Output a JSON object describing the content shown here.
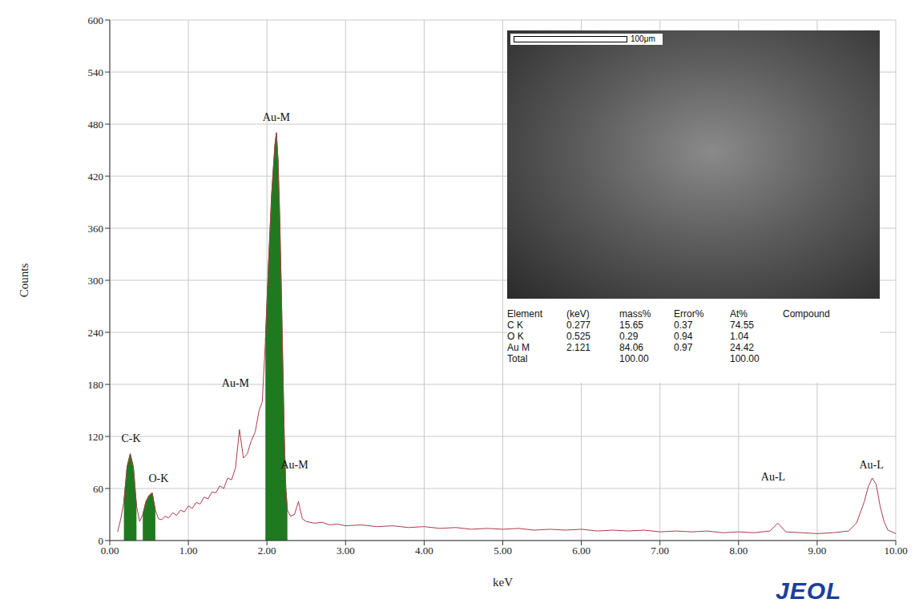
{
  "chart_data": {
    "type": "line",
    "x_label": "keV",
    "y_label": "Counts",
    "xlim": [
      0,
      10
    ],
    "xticks": [
      {
        "value": 0,
        "label": "0.00"
      },
      {
        "value": 1,
        "label": "1.00"
      },
      {
        "value": 2,
        "label": "2.00"
      },
      {
        "value": 3,
        "label": "3.00"
      },
      {
        "value": 4,
        "label": "4.00"
      },
      {
        "value": 5,
        "label": "5.00"
      },
      {
        "value": 6,
        "label": "6.00"
      },
      {
        "value": 7,
        "label": "7.00"
      },
      {
        "value": 8,
        "label": "8.00"
      },
      {
        "value": 9,
        "label": "9.00"
      },
      {
        "value": 10,
        "label": "10.00"
      }
    ],
    "ylim": [
      0,
      600
    ],
    "yticks": [
      0,
      60,
      120,
      180,
      240,
      300,
      360,
      420,
      480,
      540,
      600
    ],
    "grid": true,
    "x": [
      0.1,
      0.14,
      0.18,
      0.22,
      0.26,
      0.3,
      0.34,
      0.38,
      0.42,
      0.46,
      0.5,
      0.54,
      0.58,
      0.62,
      0.66,
      0.7,
      0.75,
      0.8,
      0.85,
      0.9,
      0.95,
      1.0,
      1.05,
      1.1,
      1.15,
      1.2,
      1.25,
      1.3,
      1.35,
      1.4,
      1.45,
      1.5,
      1.55,
      1.6,
      1.65,
      1.7,
      1.75,
      1.8,
      1.85,
      1.9,
      1.94,
      1.98,
      2.02,
      2.06,
      2.1,
      2.12,
      2.14,
      2.16,
      2.18,
      2.2,
      2.22,
      2.24,
      2.26,
      2.3,
      2.35,
      2.4,
      2.45,
      2.5,
      2.6,
      2.7,
      2.8,
      2.9,
      3.0,
      3.2,
      3.4,
      3.6,
      3.8,
      4.0,
      4.2,
      4.4,
      4.6,
      4.8,
      5.0,
      5.2,
      5.4,
      5.6,
      5.8,
      6.0,
      6.2,
      6.4,
      6.6,
      6.8,
      7.0,
      7.2,
      7.4,
      7.6,
      7.8,
      8.0,
      8.2,
      8.4,
      8.5,
      8.6,
      8.8,
      9.0,
      9.2,
      9.4,
      9.5,
      9.6,
      9.65,
      9.7,
      9.75,
      9.8,
      9.85,
      9.9,
      10.0
    ],
    "series": [
      {
        "type": "line",
        "color": "#b03a48",
        "values": [
          10,
          25,
          45,
          85,
          100,
          85,
          40,
          22,
          30,
          45,
          52,
          55,
          35,
          25,
          24,
          28,
          26,
          32,
          29,
          35,
          33,
          40,
          37,
          44,
          42,
          50,
          48,
          56,
          55,
          63,
          60,
          72,
          70,
          84,
          128,
          95,
          100,
          115,
          125,
          150,
          160,
          230,
          320,
          400,
          455,
          470,
          440,
          380,
          300,
          210,
          120,
          60,
          35,
          28,
          30,
          45,
          25,
          22,
          20,
          21,
          18,
          19,
          17,
          18,
          16,
          17,
          15,
          16,
          14,
          15,
          13,
          14,
          13,
          14,
          12,
          13,
          12,
          13,
          11,
          12,
          11,
          12,
          10,
          11,
          10,
          11,
          9,
          10,
          9,
          11,
          20,
          10,
          9,
          8,
          9,
          11,
          20,
          45,
          62,
          72,
          65,
          40,
          22,
          12,
          8
        ]
      },
      {
        "type": "area",
        "color": "#1f7a1f",
        "values": [
          null,
          null,
          45,
          85,
          100,
          85,
          40,
          null,
          30,
          45,
          52,
          55,
          35,
          null,
          null,
          null,
          null,
          null,
          null,
          null,
          null,
          null,
          null,
          null,
          null,
          null,
          null,
          null,
          null,
          null,
          null,
          null,
          null,
          null,
          null,
          null,
          null,
          null,
          null,
          null,
          null,
          230,
          320,
          400,
          455,
          470,
          440,
          380,
          300,
          210,
          120,
          60,
          35,
          null,
          null,
          null,
          null,
          null,
          null,
          null,
          null,
          null,
          null,
          null,
          null,
          null,
          null,
          null,
          null,
          null,
          null,
          null,
          null,
          null,
          null,
          null,
          null,
          null,
          null,
          null,
          null,
          null,
          null,
          null,
          null,
          null,
          null,
          null,
          null,
          null,
          null,
          null,
          null,
          null,
          null,
          null,
          null,
          null,
          null,
          null,
          null,
          null,
          null,
          null,
          null
        ]
      }
    ],
    "annotations": [
      {
        "text": "C-K",
        "x": 0.27,
        "y": 118
      },
      {
        "text": "O-K",
        "x": 0.62,
        "y": 72
      },
      {
        "text": "Au-M",
        "x": 2.12,
        "y": 488
      },
      {
        "text": "Au-M",
        "x": 1.6,
        "y": 182
      },
      {
        "text": "Au-M",
        "x": 2.35,
        "y": 88
      },
      {
        "text": "Au-L",
        "x": 8.44,
        "y": 74
      },
      {
        "text": "Au-L",
        "x": 9.69,
        "y": 88
      }
    ],
    "inset": {
      "scale_bar": "100μm",
      "table": {
        "columns": [
          "Element",
          "(keV)",
          "mass%",
          "Error%",
          "At%",
          "Compound"
        ],
        "rows": [
          [
            "C K",
            "0.277",
            "15.65",
            "0.37",
            "74.55"
          ],
          [
            "O K",
            "0.525",
            "0.29",
            "0.94",
            "1.04"
          ],
          [
            "Au M",
            "2.121",
            "84.06",
            "0.97",
            "24.42"
          ],
          [
            "Total",
            null,
            "100.00",
            null,
            "100.00"
          ]
        ]
      }
    },
    "logo": "JEOL"
  }
}
